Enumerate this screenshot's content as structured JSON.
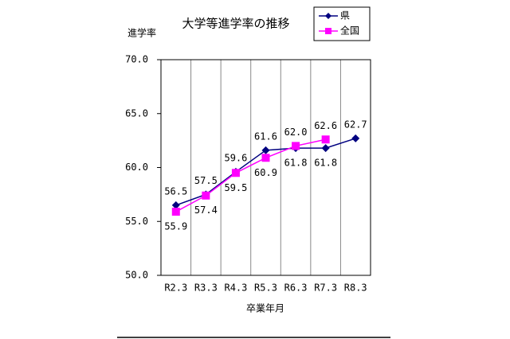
{
  "chart_data": {
    "type": "line",
    "title": "大学等進学率の推移",
    "y_label": "進学率",
    "x_label": "卒業年月",
    "categories": [
      "R2.3",
      "R3.3",
      "R4.3",
      "R5.3",
      "R6.3",
      "R7.3",
      "R8.3"
    ],
    "series": [
      {
        "name": "県",
        "color": "#000080",
        "marker": "diamond",
        "values": [
          56.5,
          57.5,
          59.6,
          61.6,
          61.8,
          61.8,
          62.7
        ],
        "value_labels": [
          "56.5",
          "57.5",
          "59.6",
          "61.6",
          "61.8",
          "61.8",
          "62.7"
        ]
      },
      {
        "name": "全国",
        "color": "#ff00ff",
        "marker": "square",
        "values": [
          55.9,
          57.4,
          59.5,
          60.9,
          62.0,
          62.6,
          null
        ],
        "value_labels": [
          "55.9",
          "57.4",
          "59.5",
          "60.9",
          "62.0",
          "62.6",
          null
        ]
      }
    ],
    "ylim": [
      50,
      70
    ],
    "yticks": [
      {
        "value": 50,
        "label": "50.0"
      },
      {
        "value": 55,
        "label": "55.0"
      },
      {
        "value": 60,
        "label": "60.0"
      },
      {
        "value": 65,
        "label": "65.0"
      },
      {
        "value": 70,
        "label": "70.0"
      }
    ],
    "legend": "top-right"
  }
}
